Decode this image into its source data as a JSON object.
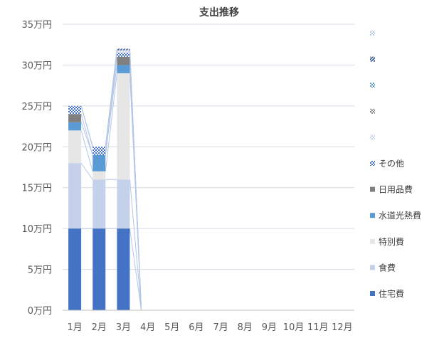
{
  "chart_data": {
    "type": "bar",
    "stacked": true,
    "title": "支出推移",
    "xlabel": "",
    "ylabel": "",
    "categories": [
      "1月",
      "2月",
      "3月",
      "4月",
      "5月",
      "6月",
      "7月",
      "8月",
      "9月",
      "10月",
      "11月",
      "12月"
    ],
    "y_ticks": [
      "0万円",
      "5万円",
      "10万円",
      "15万円",
      "20万円",
      "25万円",
      "30万円",
      "35万円"
    ],
    "ylim": [
      0,
      35
    ],
    "unit": "万円",
    "grid": true,
    "legend_position": "right",
    "series_lines": true,
    "series": [
      {
        "name": "住宅費",
        "color": "#4472c4",
        "pattern": "solid",
        "values": [
          10,
          10,
          10,
          0,
          0,
          0,
          0,
          0,
          0,
          0,
          0,
          0
        ]
      },
      {
        "name": "食費",
        "color": "#c5d1ea",
        "pattern": "solid",
        "values": [
          8,
          6,
          6,
          0,
          0,
          0,
          0,
          0,
          0,
          0,
          0,
          0
        ]
      },
      {
        "name": "特別費",
        "color": "#e6e6e6",
        "pattern": "solid",
        "values": [
          4,
          1,
          13,
          0,
          0,
          0,
          0,
          0,
          0,
          0,
          0,
          0
        ]
      },
      {
        "name": "水道光熱費",
        "color": "#5b9bd5",
        "pattern": "solid",
        "values": [
          1,
          2,
          1,
          0,
          0,
          0,
          0,
          0,
          0,
          0,
          0,
          0
        ]
      },
      {
        "name": "日用品費",
        "color": "#808080",
        "pattern": "solid",
        "values": [
          1,
          0,
          1,
          0,
          0,
          0,
          0,
          0,
          0,
          0,
          0,
          0
        ]
      },
      {
        "name": "その他",
        "color": "#4472c4",
        "pattern": "check",
        "values": [
          1,
          1,
          0.5,
          0,
          0,
          0,
          0,
          0,
          0,
          0,
          0,
          0
        ]
      },
      {
        "name": "",
        "color": "#c5d1ea",
        "pattern": "check",
        "values": [
          0,
          0,
          0.3,
          0,
          0,
          0,
          0,
          0,
          0,
          0,
          0,
          0
        ]
      },
      {
        "name": "",
        "color": "#808080",
        "pattern": "check",
        "values": [
          0,
          0,
          0,
          0,
          0,
          0,
          0,
          0,
          0,
          0,
          0,
          0
        ]
      },
      {
        "name": "",
        "color": "#5b9bd5",
        "pattern": "check",
        "values": [
          0,
          0,
          0,
          0,
          0,
          0,
          0,
          0,
          0,
          0,
          0,
          0
        ]
      },
      {
        "name": "",
        "color": "#2f5597",
        "pattern": "diag",
        "values": [
          0,
          0,
          0.2,
          0,
          0,
          0,
          0,
          0,
          0,
          0,
          0,
          0
        ]
      },
      {
        "name": "",
        "color": "#b4c7e7",
        "pattern": "check",
        "values": [
          0,
          0,
          0,
          0,
          0,
          0,
          0,
          0,
          0,
          0,
          0,
          0
        ]
      }
    ]
  }
}
